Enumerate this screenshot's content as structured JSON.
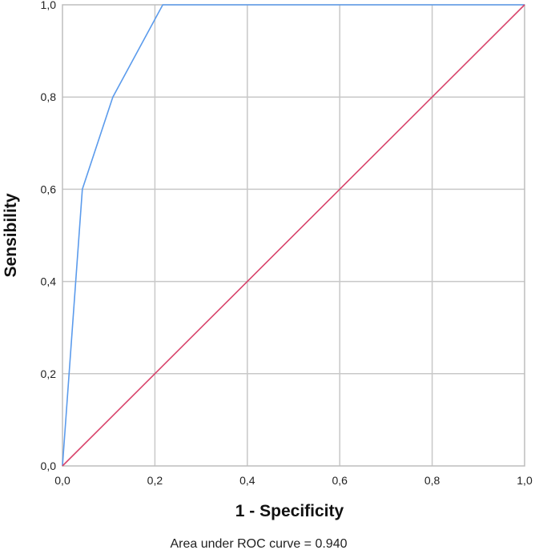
{
  "chart_data": {
    "type": "line",
    "xlabel": "1 - Specificity",
    "ylabel": "Sensibility",
    "xlim": [
      0,
      1
    ],
    "ylim": [
      0,
      1
    ],
    "x_ticks": [
      "0,0",
      "0,2",
      "0,4",
      "0,6",
      "0,8",
      "1,0"
    ],
    "y_ticks": [
      "0,0",
      "0,2",
      "0,4",
      "0,6",
      "0,8",
      "1,0"
    ],
    "grid": true,
    "annotation": "Area under ROC curve = 0.940",
    "series": [
      {
        "color": "#5b9bec",
        "points": [
          {
            "x": 0.0,
            "y": 0.0
          },
          {
            "x": 0.043,
            "y": 0.6
          },
          {
            "x": 0.109,
            "y": 0.8
          },
          {
            "x": 0.217,
            "y": 1.0
          },
          {
            "x": 1.0,
            "y": 1.0
          }
        ]
      },
      {
        "color": "#d8436b",
        "points": [
          {
            "x": 0.0,
            "y": 0.0
          },
          {
            "x": 1.0,
            "y": 1.0
          }
        ]
      }
    ]
  }
}
